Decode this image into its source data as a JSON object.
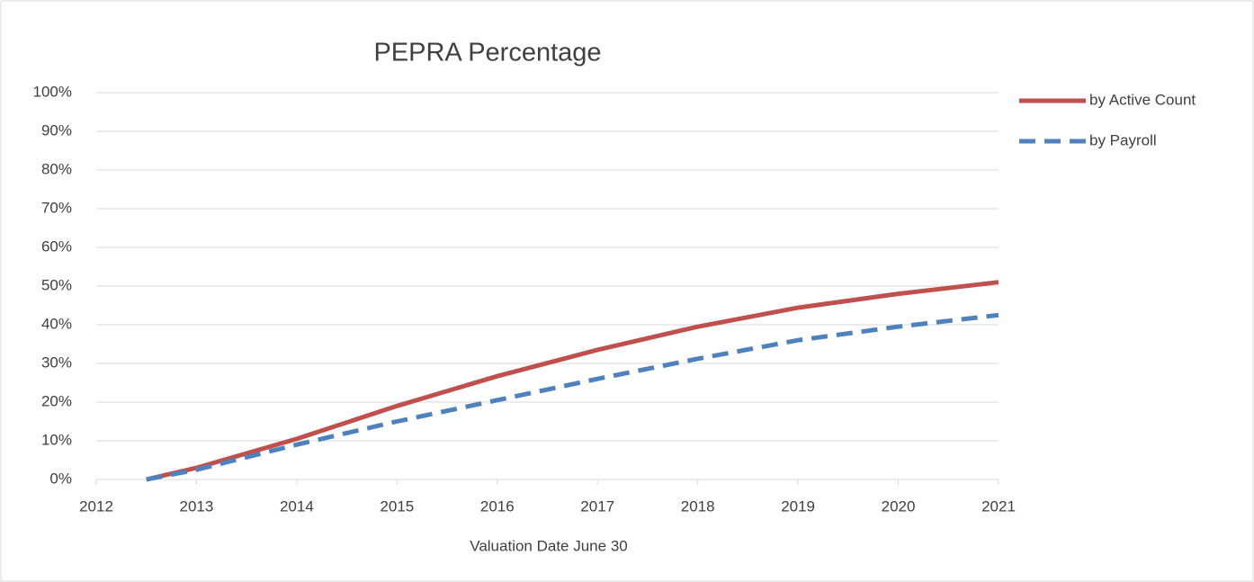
{
  "chart_data": {
    "type": "line",
    "title": "PEPRA Percentage",
    "x_label": "Valuation Date June 30",
    "x": [
      2012.5,
      2013,
      2014,
      2015,
      2016,
      2017,
      2018,
      2019,
      2020,
      2021
    ],
    "series": [
      {
        "name": "by Active Count",
        "color": "#c0504d",
        "dash": false,
        "values": [
          0,
          3,
          10.5,
          19,
          26.7,
          33.5,
          39.5,
          44.4,
          48,
          51
        ]
      },
      {
        "name": "by Payroll",
        "color": "#4f81bd",
        "dash": true,
        "values": [
          0,
          2.5,
          9,
          15,
          20.5,
          26,
          31.2,
          36,
          39.5,
          42.5
        ]
      }
    ],
    "xlim": [
      2012,
      2021
    ],
    "xticks": [
      2012,
      2013,
      2014,
      2015,
      2016,
      2017,
      2018,
      2019,
      2020,
      2021
    ],
    "ylim": [
      0,
      100
    ],
    "yticks": [
      {
        "value": 0,
        "label": "0%"
      },
      {
        "value": 10,
        "label": "10%"
      },
      {
        "value": 20,
        "label": "20%"
      },
      {
        "value": 30,
        "label": "30%"
      },
      {
        "value": 40,
        "label": "40%"
      },
      {
        "value": 50,
        "label": "50%"
      },
      {
        "value": 60,
        "label": "60%"
      },
      {
        "value": 70,
        "label": "70%"
      },
      {
        "value": 80,
        "label": "80%"
      },
      {
        "value": 90,
        "label": "90%"
      },
      {
        "value": 100,
        "label": "100%"
      }
    ],
    "grid": true,
    "legend": "right"
  }
}
